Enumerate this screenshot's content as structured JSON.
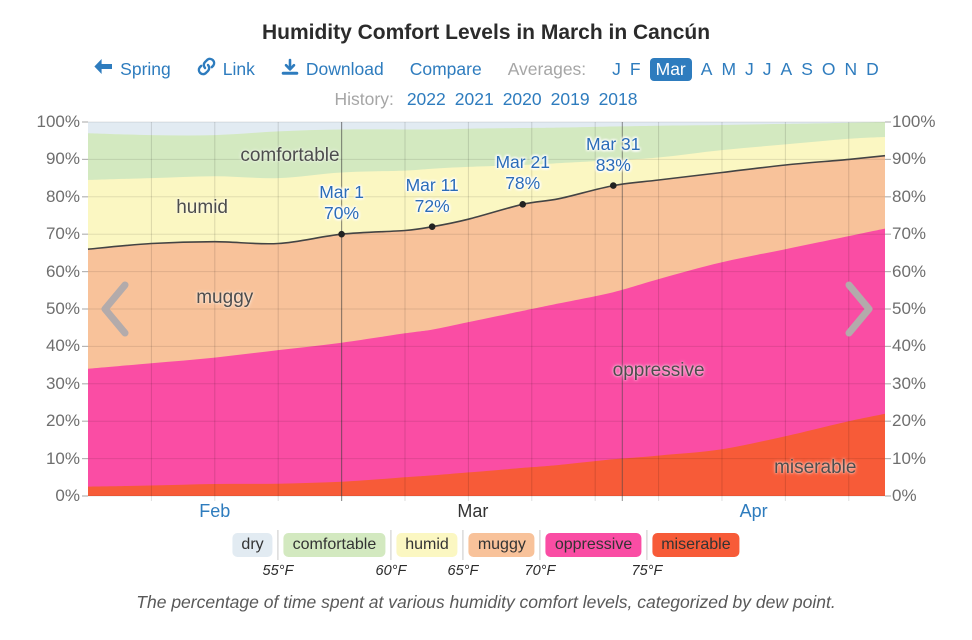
{
  "title": "Humidity Comfort Levels in March in Cancún",
  "nav": {
    "back_label": "Spring",
    "link_label": "Link",
    "download_label": "Download",
    "compare_label": "Compare",
    "averages_label": "Averages:",
    "months": [
      "J",
      "F",
      "Mar",
      "A",
      "M",
      "J",
      "J",
      "A",
      "S",
      "O",
      "N",
      "D"
    ],
    "selected_month_index": 2,
    "history_label": "History:",
    "years": [
      "2022",
      "2021",
      "2020",
      "2019",
      "2018"
    ]
  },
  "chart_data": {
    "type": "area",
    "stacked": true,
    "title": "Humidity Comfort Levels in March in Cancún",
    "ylabel": "percentage of time",
    "ylim": [
      0,
      100
    ],
    "y_tick_step": 10,
    "y_tick_suffix": "%",
    "x_start": "Feb 1",
    "x_end": "Apr 30",
    "x_total_days": 88,
    "x_days": [
      0,
      7,
      14,
      21,
      28,
      35,
      38,
      42,
      48,
      52,
      58,
      63,
      70,
      77,
      84,
      88
    ],
    "x_dates": [
      "Feb 1",
      "Feb 8",
      "Feb 15",
      "Feb 22",
      "Mar 1",
      "Mar 8",
      "Mar 11",
      "Mar 15",
      "Mar 21",
      "Mar 25",
      "Mar 31",
      "Apr 5",
      "Apr 12",
      "Apr 19",
      "Apr 26",
      "Apr 30"
    ],
    "bands_bottom_to_top": [
      {
        "name": "miserable",
        "color": "#f75b38",
        "cum_top": [
          2.5,
          2.8,
          3.2,
          3.3,
          3.8,
          5,
          5.5,
          6.3,
          7.5,
          8.3,
          9.8,
          10.8,
          12.5,
          16,
          20,
          22
        ]
      },
      {
        "name": "oppressive",
        "color": "#fa4da4",
        "cum_top": [
          34,
          35.5,
          37,
          39,
          41,
          43.5,
          44.5,
          46.5,
          49.5,
          51.5,
          54.5,
          58,
          62.5,
          66,
          69.5,
          71.5
        ]
      },
      {
        "name": "muggy",
        "color": "#f8c29a",
        "cum_top": [
          66,
          67.5,
          68,
          67.5,
          70,
          71,
          72,
          74,
          78,
          79.5,
          83,
          84.5,
          86.5,
          88.5,
          90,
          91
        ]
      },
      {
        "name": "humid",
        "color": "#fbf7c2",
        "cum_top": [
          84.5,
          85,
          85.5,
          85,
          86.5,
          87,
          87.5,
          88,
          88.5,
          89,
          89.8,
          90.5,
          92.5,
          94,
          95.5,
          96
        ]
      },
      {
        "name": "comfortable",
        "color": "#d3e9c0",
        "cum_top": [
          97,
          96.5,
          96.5,
          97.5,
          98,
          98,
          98,
          98.2,
          98.4,
          98.5,
          98.8,
          99,
          99.2,
          99.5,
          99.8,
          100
        ]
      },
      {
        "name": "dry",
        "color": "#e2ebf2",
        "cum_top": [
          100,
          100,
          100,
          100,
          100,
          100,
          100,
          100,
          100,
          100,
          100,
          100,
          100,
          100,
          100,
          100
        ]
      }
    ],
    "boundary_line": {
      "band": "muggy",
      "labeled_points": [
        {
          "date": "Mar 1",
          "day": 28,
          "value_pct": 70,
          "value_label": "70%"
        },
        {
          "date": "Mar 11",
          "day": 38,
          "value_pct": 72,
          "value_label": "72%"
        },
        {
          "date": "Mar 21",
          "day": 48,
          "value_pct": 78,
          "value_label": "78%"
        },
        {
          "date": "Mar 31",
          "day": 58,
          "value_pct": 83,
          "value_label": "83%"
        }
      ]
    },
    "x_month_labels": [
      {
        "label": "Feb",
        "day": 14,
        "is_link": true
      },
      {
        "label": "Mar",
        "day": 42.5,
        "is_link": false
      },
      {
        "label": "Apr",
        "day": 73.5,
        "is_link": true
      }
    ],
    "band_labels": [
      {
        "text": "comfortable",
        "day": 22.3,
        "pct": 91
      },
      {
        "text": "humid",
        "day": 12.6,
        "pct": 77
      },
      {
        "text": "muggy",
        "day": 15.1,
        "pct": 53
      },
      {
        "text": "oppressive",
        "day": 63,
        "pct": 33.5
      },
      {
        "text": "miserable",
        "day": 80.3,
        "pct": 7.5
      }
    ],
    "gridlines": {
      "grid_on": true,
      "weekly_days": [
        7,
        14,
        21,
        28,
        35,
        42,
        49,
        56,
        63,
        70,
        77,
        84
      ],
      "month_boundary_days": [
        28,
        59
      ]
    },
    "legend_position": "bottom"
  },
  "legend": {
    "items": [
      {
        "label": "dry",
        "color": "#e2ebf2"
      },
      {
        "label": "comfortable",
        "color": "#d3e9c0"
      },
      {
        "label": "humid",
        "color": "#fbf7c2"
      },
      {
        "label": "muggy",
        "color": "#f8c29a"
      },
      {
        "label": "oppressive",
        "color": "#fa4da4"
      },
      {
        "label": "miserable",
        "color": "#f75b38"
      }
    ],
    "thresholds": [
      "55°F",
      "60°F",
      "65°F",
      "70°F",
      "75°F"
    ]
  },
  "caption": "The percentage of time spent at various humidity comfort levels, categorized by dew point.",
  "colors": {
    "link": "#2e7cbe",
    "selected_month_bg": "#2e7cbe",
    "selected_month_text": "#ffffff",
    "muted_label": "#a6a6a6",
    "axis_label": "#6e6e6e",
    "title_text": "#2b2b2b",
    "caption_text": "#595959",
    "boundary_line": "#444444",
    "point_dot": "#222222",
    "point_label": "#2b6cb8",
    "band_label": "#4d4d4d",
    "chevron": "#b3abab",
    "current_month_axis": "#333333"
  }
}
